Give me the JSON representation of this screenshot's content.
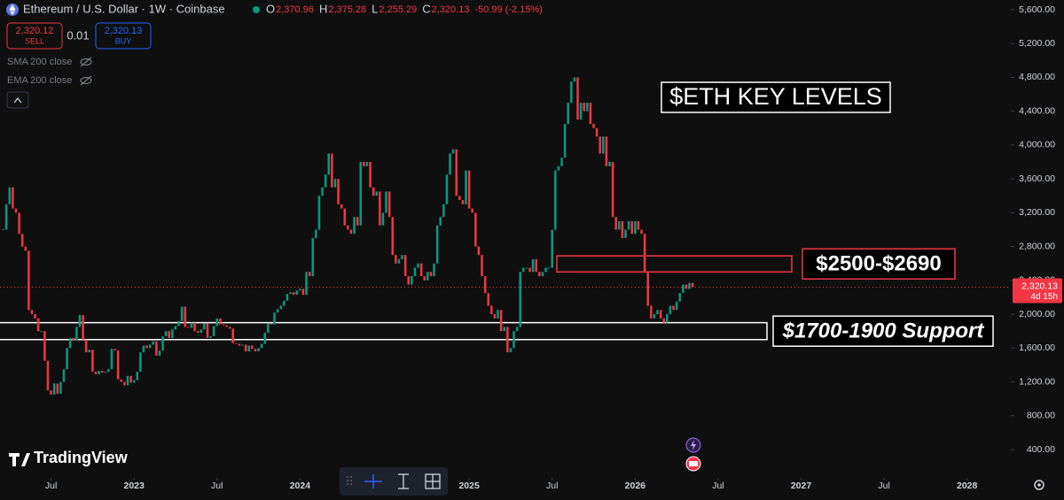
{
  "header": {
    "symbol": "Ethereum / U.S. Dollar · 1W · Coinbase",
    "ohlc": [
      {
        "key": "O",
        "value": "2,370.96"
      },
      {
        "key": "H",
        "value": "2,375.28"
      },
      {
        "key": "L",
        "value": "2,255.29"
      },
      {
        "key": "C",
        "value": "2,320.13"
      }
    ],
    "change": "-50.99 (-2.15%)",
    "sell": {
      "price": "2,320.12",
      "label": "SELL"
    },
    "spread": "0.01",
    "buy": {
      "price": "2,320.13",
      "label": "BUY"
    },
    "indicators": [
      "SMA 200 close",
      "EMA 200 close"
    ],
    "brand": "TradingView"
  },
  "chart_data": {
    "type": "candlestick",
    "title": "$ETH KEY LEVELS",
    "values": [
      3000,
      3300,
      3500,
      3250,
      3200,
      2950,
      2800,
      2750,
      2050,
      2000,
      1950,
      1800,
      1800,
      1450,
      1100,
      1050,
      1180,
      1060,
      1200,
      1350,
      1600,
      1720,
      1690,
      1850,
      1990,
      1700,
      1550,
      1580,
      1320,
      1290,
      1330,
      1310,
      1320,
      1350,
      1590,
      1570,
      1230,
      1200,
      1160,
      1270,
      1190,
      1220,
      1320,
      1550,
      1630,
      1600,
      1640,
      1680,
      1510,
      1570,
      1740,
      1800,
      1720,
      1820,
      1860,
      1920,
      2090,
      1850,
      1840,
      1900,
      1800,
      1780,
      1820,
      1890,
      1720,
      1740,
      1860,
      1950,
      1880,
      1870,
      1850,
      1830,
      1660,
      1650,
      1630,
      1640,
      1560,
      1630,
      1590,
      1560,
      1600,
      1650,
      1780,
      1890,
      1880,
      2020,
      2060,
      2100,
      2160,
      2240,
      2260,
      2230,
      2280,
      2300,
      2230,
      2500,
      2450,
      2900,
      3000,
      3400,
      3500,
      3650,
      3900,
      3500,
      3600,
      3300,
      3250,
      3050,
      3000,
      2950,
      3150,
      3050,
      3800,
      3750,
      3800,
      3500,
      3400,
      3450,
      3050,
      3200,
      3450,
      3150,
      2700,
      2600,
      2650,
      2700,
      2450,
      2350,
      2450,
      2550,
      2600,
      2450,
      2400,
      2500,
      2450,
      2600,
      3050,
      3150,
      3300,
      3650,
      3900,
      3950,
      3400,
      3350,
      3300,
      3700,
      3250,
      3200,
      2800,
      2700,
      2450,
      2250,
      2100,
      2000,
      1950,
      2050,
      1800,
      1850,
      1550,
      1600,
      1800,
      1850,
      2500,
      2550,
      2550,
      2500,
      2650,
      2500,
      2450,
      2500,
      2550,
      2550,
      3000,
      3700,
      3750,
      3850,
      4250,
      4500,
      4750,
      4800,
      4300,
      4500,
      4400,
      4500,
      4250,
      4200,
      4100,
      3900,
      4100,
      3750,
      3800,
      3150,
      3000,
      3100,
      2900,
      3000,
      3100,
      2950,
      3100,
      3000,
      2950,
      2500,
      2100,
      1950,
      2000,
      2050,
      1950,
      1900,
      2000,
      2100,
      2050,
      2150,
      2250,
      2350,
      2300,
      2370,
      2320
    ],
    "up_color": "#089981",
    "down_color": "#f23645",
    "ylim": [
      65,
      5715
    ],
    "yticks": [
      {
        "value": 400,
        "label": "400.00"
      },
      {
        "value": 800,
        "label": "800.00"
      },
      {
        "value": 1200,
        "label": "1,200.00"
      },
      {
        "value": 1600,
        "label": "1,600.00"
      },
      {
        "value": 2000,
        "label": "2,000.00"
      },
      {
        "value": 2400,
        "label": "2,400.00"
      },
      {
        "value": 2800,
        "label": "2,800.00"
      },
      {
        "value": 3200,
        "label": "3,200.00"
      },
      {
        "value": 3600,
        "label": "3,600.00"
      },
      {
        "value": 4000,
        "label": "4,000.00"
      },
      {
        "value": 4400,
        "label": "4,400.00"
      },
      {
        "value": 4800,
        "label": "4,800.00"
      },
      {
        "value": 5200,
        "label": "5,200.00"
      },
      {
        "value": 5600,
        "label": "5,600.00"
      }
    ],
    "xlim": [
      -1,
      315.7
    ],
    "xticks": [
      {
        "value": 15,
        "label": "Jul"
      },
      {
        "value": 41,
        "label": "2023"
      },
      {
        "value": 67,
        "label": "Jul"
      },
      {
        "value": 93,
        "label": "2024"
      },
      {
        "value": 119,
        "label": "Jul"
      },
      {
        "value": 146,
        "label": "2025"
      },
      {
        "value": 172,
        "label": "Jul"
      },
      {
        "value": 198,
        "label": "2026"
      },
      {
        "value": 224,
        "label": "Jul"
      },
      {
        "value": 250,
        "label": "2027"
      },
      {
        "value": 276,
        "label": "Jul"
      },
      {
        "value": 302,
        "label": "2028"
      }
    ],
    "last_price": {
      "label": "2,320.13",
      "countdown": "4d 15h"
    },
    "zones": [
      {
        "low": 2500,
        "high": 2690,
        "label": "$2500-$2690",
        "color": "#f23645"
      },
      {
        "low": 1700,
        "high": 1900,
        "label": "$1700-1900 Support",
        "color": "#ffffff"
      }
    ]
  }
}
